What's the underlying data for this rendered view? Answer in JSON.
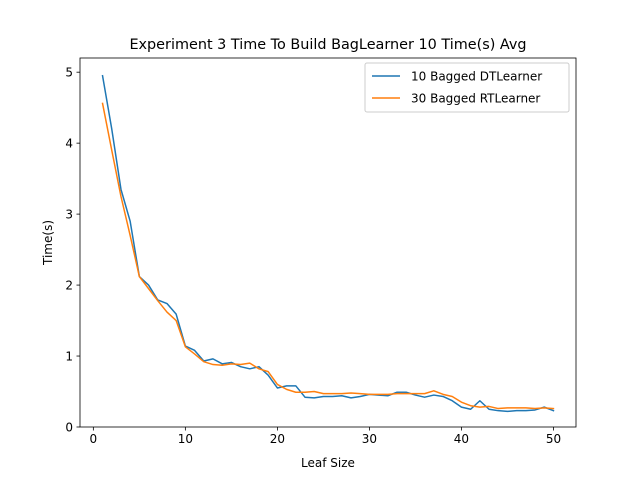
{
  "chart_data": {
    "type": "line",
    "title": "Experiment 3 Time To Build BagLearner 10 Time(s) Avg",
    "xlabel": "Leaf Size",
    "ylabel": "Time(s)",
    "xlim": [
      -1.45,
      52.45
    ],
    "ylim": [
      0,
      5.2
    ],
    "xticks": [
      0,
      10,
      20,
      30,
      40,
      50
    ],
    "yticks": [
      0,
      1,
      2,
      3,
      4,
      5
    ],
    "grid": false,
    "legend_position": "upper-right",
    "x": [
      1,
      2,
      3,
      4,
      5,
      6,
      7,
      8,
      9,
      10,
      11,
      12,
      13,
      14,
      15,
      16,
      17,
      18,
      19,
      20,
      21,
      22,
      23,
      24,
      25,
      26,
      27,
      28,
      29,
      30,
      31,
      32,
      33,
      34,
      35,
      36,
      37,
      38,
      39,
      40,
      41,
      42,
      43,
      44,
      45,
      46,
      47,
      48,
      49,
      50
    ],
    "series": [
      {
        "name": "10 Bagged DTLearner",
        "color": "#1f77b4",
        "values": [
          4.95,
          4.2,
          3.35,
          2.9,
          2.12,
          2.0,
          1.79,
          1.74,
          1.59,
          1.14,
          1.08,
          0.93,
          0.96,
          0.89,
          0.91,
          0.85,
          0.82,
          0.85,
          0.73,
          0.55,
          0.58,
          0.58,
          0.42,
          0.41,
          0.43,
          0.43,
          0.44,
          0.41,
          0.43,
          0.46,
          0.45,
          0.44,
          0.49,
          0.49,
          0.45,
          0.42,
          0.45,
          0.43,
          0.37,
          0.28,
          0.25,
          0.37,
          0.25,
          0.23,
          0.22,
          0.23,
          0.23,
          0.24,
          0.28,
          0.23
        ]
      },
      {
        "name": "30 Bagged RTLearner",
        "color": "#ff7f0e",
        "values": [
          4.56,
          3.9,
          3.25,
          2.7,
          2.12,
          1.95,
          1.78,
          1.62,
          1.5,
          1.13,
          1.03,
          0.92,
          0.88,
          0.87,
          0.89,
          0.88,
          0.9,
          0.82,
          0.78,
          0.6,
          0.53,
          0.49,
          0.49,
          0.5,
          0.47,
          0.47,
          0.47,
          0.48,
          0.47,
          0.46,
          0.46,
          0.46,
          0.47,
          0.47,
          0.47,
          0.47,
          0.51,
          0.46,
          0.43,
          0.35,
          0.3,
          0.28,
          0.29,
          0.26,
          0.27,
          0.27,
          0.27,
          0.26,
          0.27,
          0.26
        ]
      }
    ]
  }
}
